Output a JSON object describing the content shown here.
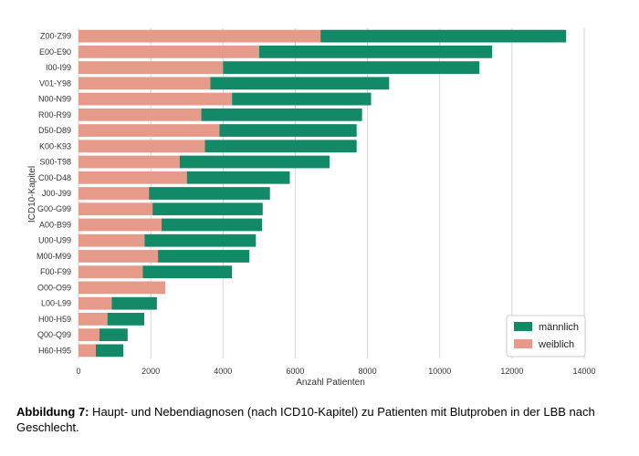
{
  "chart_data": {
    "type": "bar",
    "orientation": "horizontal",
    "stacked": true,
    "xlabel": "Anzahl Patienten",
    "ylabel": "ICD10-Kapitel",
    "xlim": [
      0,
      14000
    ],
    "xticks": [
      0,
      2000,
      4000,
      6000,
      8000,
      10000,
      12000,
      14000
    ],
    "grid": "vertical",
    "legend_position": "bottom-right",
    "categories": [
      "Z00-Z99",
      "E00-E90",
      "I00-I99",
      "V01-Y98",
      "N00-N99",
      "R00-R99",
      "D50-D89",
      "K00-K93",
      "S00-T98",
      "C00-D48",
      "J00-J99",
      "G00-G99",
      "A00-B99",
      "U00-U99",
      "M00-M99",
      "F00-F99",
      "O00-O99",
      "L00-L99",
      "H00-H59",
      "Q00-Q99",
      "H60-H95"
    ],
    "series": [
      {
        "name": "weiblich",
        "color": "#e59a8a",
        "values": [
          6700,
          5000,
          4000,
          3650,
          4250,
          3400,
          3900,
          3500,
          2800,
          3000,
          1950,
          2050,
          2300,
          1830,
          2200,
          1780,
          2400,
          920,
          800,
          580,
          480
        ]
      },
      {
        "name": "männlich",
        "color": "#128a68",
        "values": [
          6800,
          6450,
          7100,
          4950,
          3850,
          4450,
          3800,
          4200,
          4150,
          2850,
          3350,
          3050,
          2780,
          3080,
          2530,
          2470,
          0,
          1250,
          1020,
          780,
          760
        ]
      }
    ],
    "legend": [
      {
        "name": "männlich",
        "color": "#128a68"
      },
      {
        "name": "weiblich",
        "color": "#e59a8a"
      }
    ]
  },
  "caption": {
    "label": "Abbildung 7:",
    "text": " Haupt- und Nebendiagnosen (nach ICD10-Kapitel) zu Patienten mit Blutproben in der LBB nach Geschlecht."
  }
}
